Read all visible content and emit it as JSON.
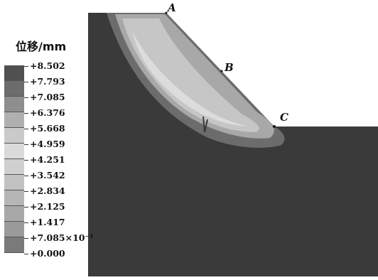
{
  "legend": {
    "title": "位移/mm",
    "colors": [
      "#505050",
      "#6c6c6c",
      "#8e8e8e",
      "#b0b0b0",
      "#cacaca",
      "#dadada",
      "#d0d0d0",
      "#c2c2c2",
      "#b6b6b6",
      "#a8a8a8",
      "#9a9a9a",
      "#7a7a7a",
      "#3c3c3c"
    ],
    "labels": [
      "+8.502",
      "+7.793",
      "+7.085",
      "+6.376",
      "+5.668",
      "+4.959",
      "+4.251",
      "+3.542",
      "+2.834",
      "+2.125",
      "+1.417",
      "+7.085×10⁻¹",
      "+0.000"
    ]
  },
  "points": [
    {
      "id": "A",
      "label": "A"
    },
    {
      "id": "B",
      "label": "B"
    },
    {
      "id": "C",
      "label": "C"
    }
  ]
}
